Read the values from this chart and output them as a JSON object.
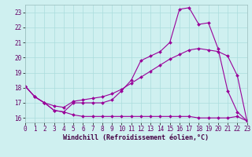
{
  "line1_x": [
    0,
    1,
    2,
    3,
    4,
    5,
    6,
    7,
    8,
    9,
    10,
    11,
    12,
    13,
    14,
    15,
    16,
    17,
    18,
    19,
    20,
    21,
    22,
    23
  ],
  "line1_y": [
    18.1,
    17.4,
    17.0,
    16.5,
    16.4,
    17.0,
    17.0,
    17.0,
    17.0,
    17.2,
    17.8,
    18.5,
    19.8,
    20.1,
    20.4,
    21.0,
    23.2,
    23.3,
    22.2,
    22.3,
    20.6,
    17.8,
    16.4,
    15.8
  ],
  "line2_x": [
    0,
    1,
    2,
    3,
    4,
    5,
    6,
    7,
    8,
    9,
    10,
    11,
    12,
    13,
    14,
    15,
    16,
    17,
    18,
    19,
    20,
    21,
    22,
    23
  ],
  "line2_y": [
    18.1,
    17.4,
    17.0,
    16.8,
    16.7,
    17.1,
    17.2,
    17.3,
    17.4,
    17.6,
    17.9,
    18.3,
    18.7,
    19.1,
    19.5,
    19.9,
    20.2,
    20.5,
    20.6,
    20.5,
    20.4,
    20.1,
    18.8,
    15.8
  ],
  "line3_x": [
    0,
    1,
    2,
    3,
    4,
    5,
    6,
    7,
    8,
    9,
    10,
    11,
    12,
    13,
    14,
    15,
    16,
    17,
    18,
    19,
    20,
    21,
    22,
    23
  ],
  "line3_y": [
    18.1,
    17.4,
    17.0,
    16.5,
    16.4,
    16.2,
    16.1,
    16.1,
    16.1,
    16.1,
    16.1,
    16.1,
    16.1,
    16.1,
    16.1,
    16.1,
    16.1,
    16.1,
    16.0,
    16.0,
    16.0,
    16.0,
    16.1,
    15.8
  ],
  "line_color": "#990099",
  "bg_color": "#cff0f0",
  "grid_color": "#aadddd",
  "xlabel": "Windchill (Refroidissement éolien,°C)",
  "xlim": [
    0,
    23
  ],
  "ylim": [
    15.7,
    23.5
  ],
  "yticks": [
    16,
    17,
    18,
    19,
    20,
    21,
    22,
    23
  ],
  "xticks": [
    0,
    1,
    2,
    3,
    4,
    5,
    6,
    7,
    8,
    9,
    10,
    11,
    12,
    13,
    14,
    15,
    16,
    17,
    18,
    19,
    20,
    21,
    22,
    23
  ]
}
